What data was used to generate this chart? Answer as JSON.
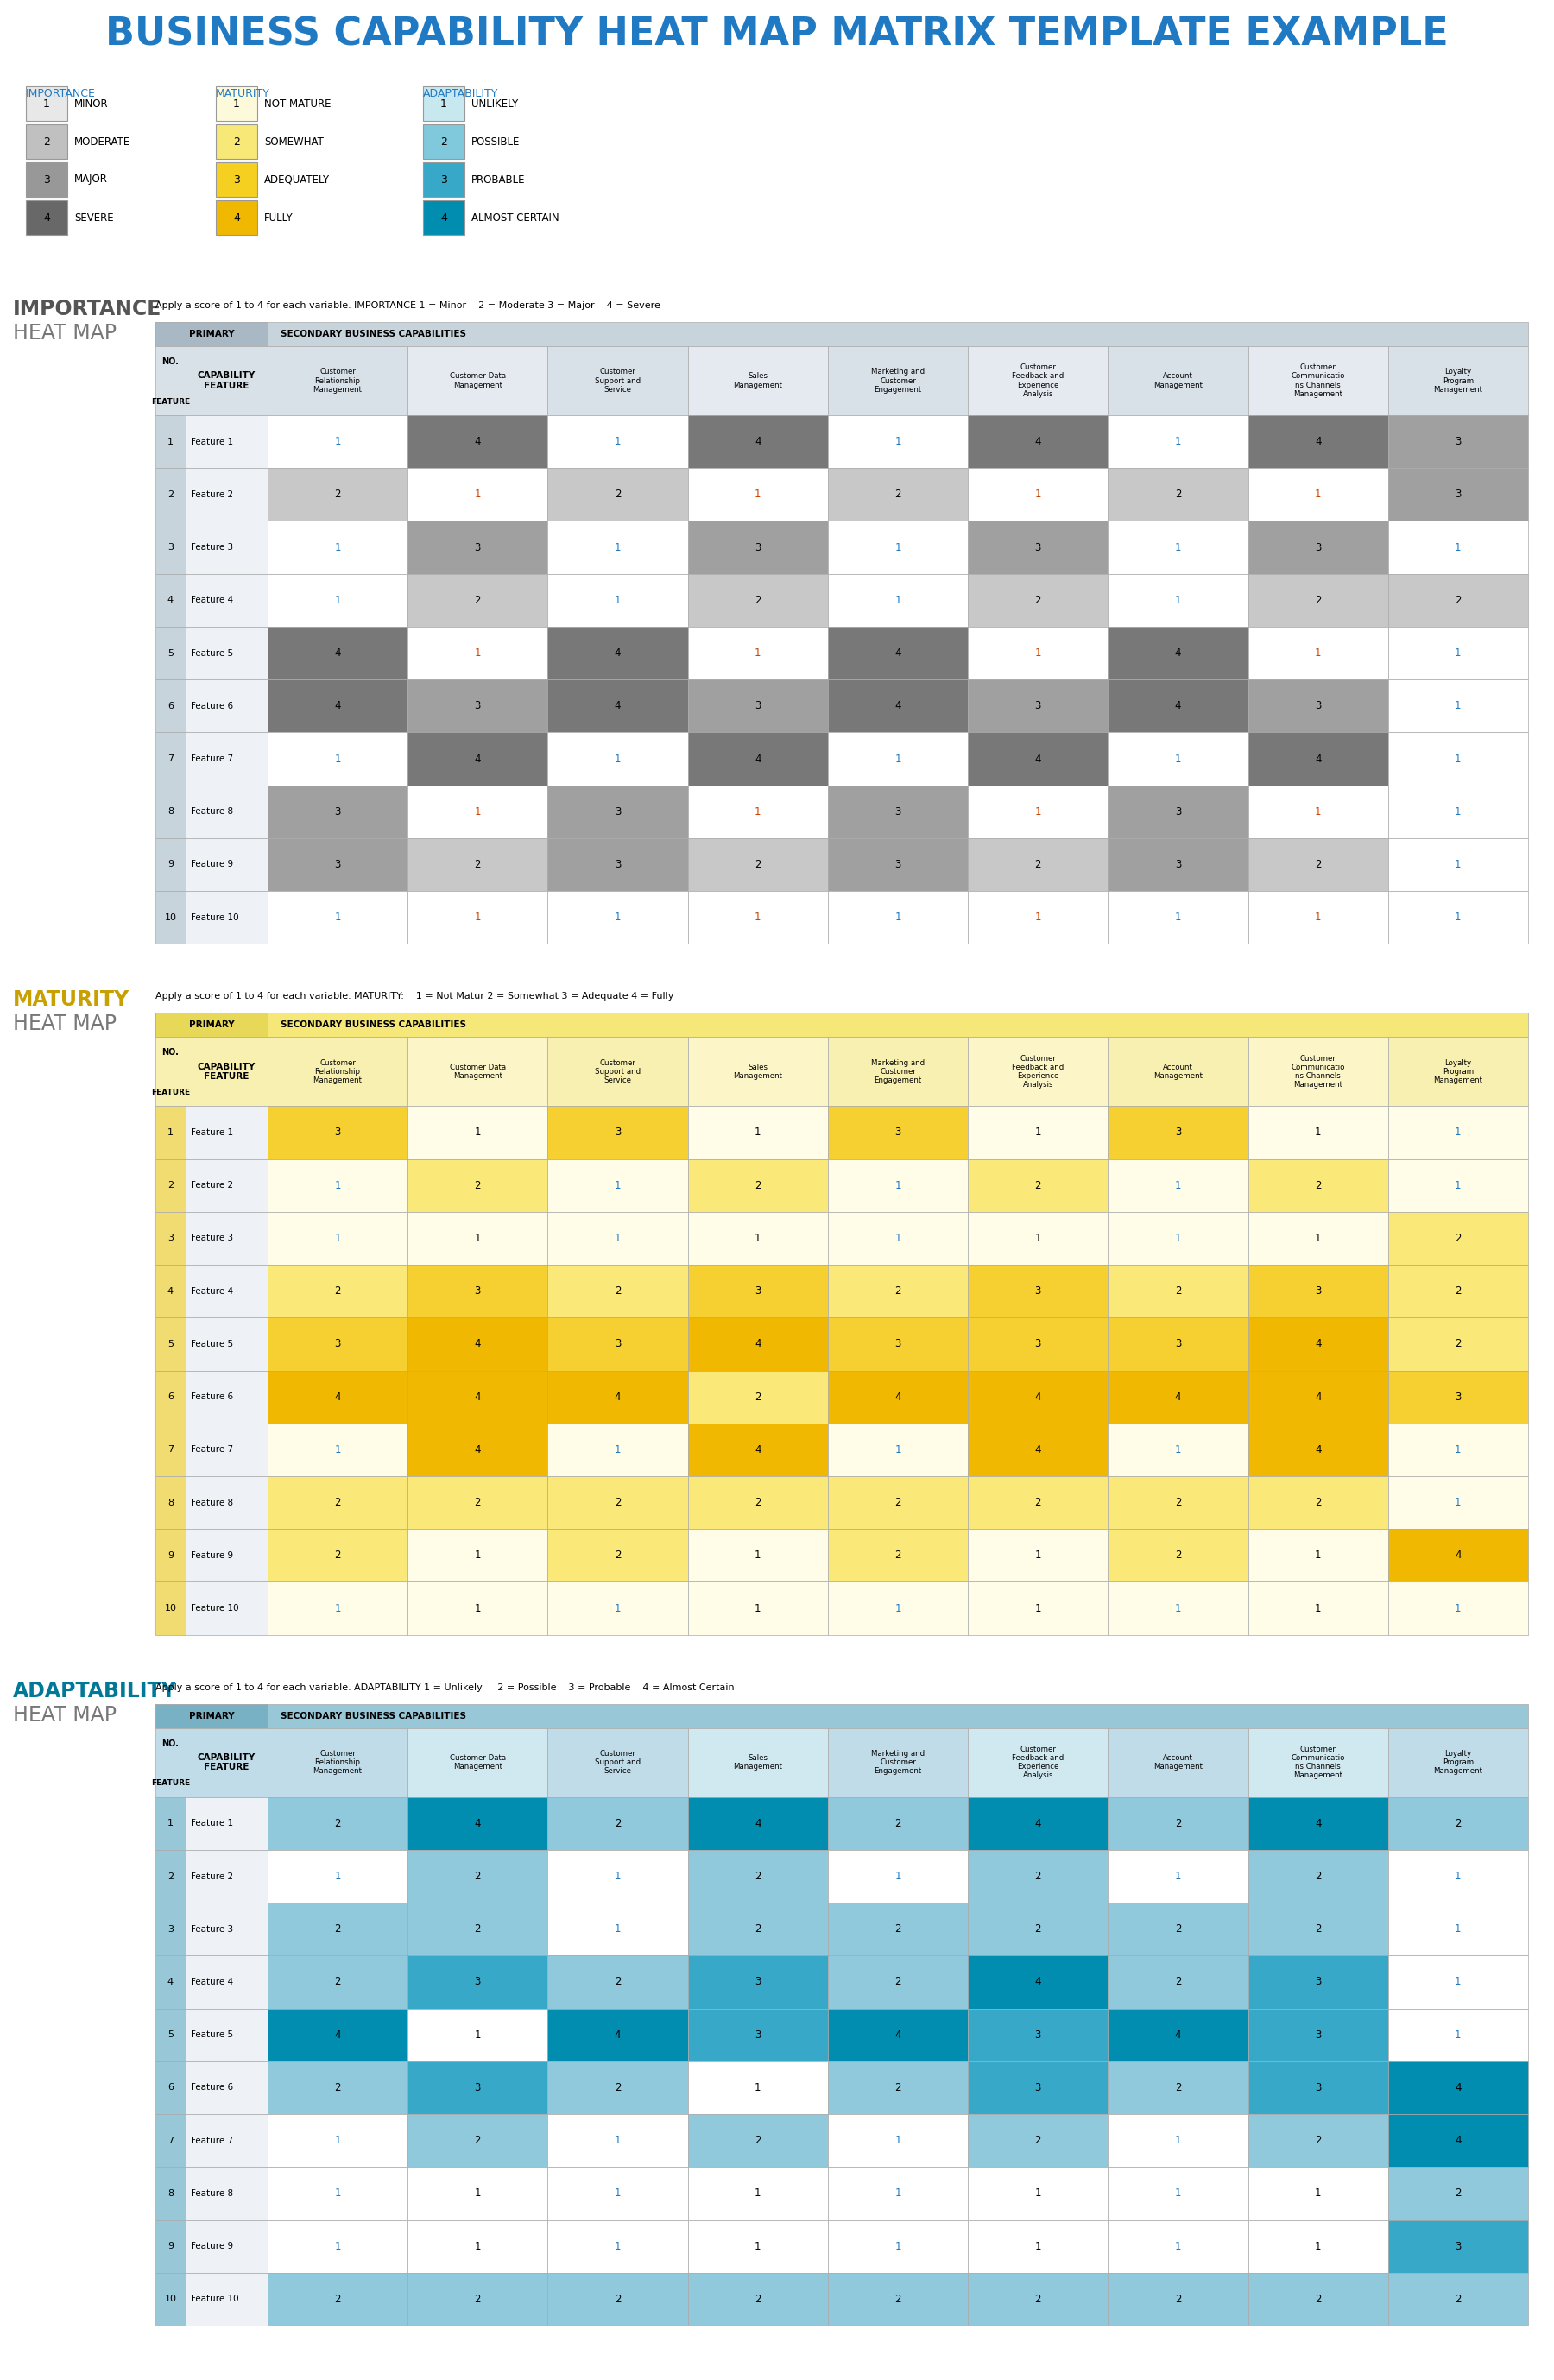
{
  "title": "BUSINESS CAPABILITY HEAT MAP MATRIX TEMPLATE EXAMPLE",
  "title_color": "#1F7AC3",
  "title_fontsize": 32,
  "legend_headers": [
    "IMPORTANCE",
    "MATURITY",
    "ADAPTABILITY"
  ],
  "legend_header_color": "#1F7AC3",
  "importance_items": [
    {
      "num": 1,
      "label": "MINOR",
      "color": "#E8E8E8"
    },
    {
      "num": 2,
      "label": "MODERATE",
      "color": "#C0C0C0"
    },
    {
      "num": 3,
      "label": "MAJOR",
      "color": "#989898"
    },
    {
      "num": 4,
      "label": "SEVERE",
      "color": "#686868"
    }
  ],
  "maturity_items": [
    {
      "num": 1,
      "label": "NOT MATURE",
      "color": "#FDFADC"
    },
    {
      "num": 2,
      "label": "SOMEWHAT",
      "color": "#F8E878"
    },
    {
      "num": 3,
      "label": "ADEQUATELY",
      "color": "#F5D020"
    },
    {
      "num": 4,
      "label": "FULLY",
      "color": "#F0B800"
    }
  ],
  "adaptability_items": [
    {
      "num": 1,
      "label": "UNLIKELY",
      "color": "#C8E8F0"
    },
    {
      "num": 2,
      "label": "POSSIBLE",
      "color": "#80C8DC"
    },
    {
      "num": 3,
      "label": "PROBABLE",
      "color": "#38A8C8"
    },
    {
      "num": 4,
      "label": "ALMOST CERTAIN",
      "color": "#008DB0"
    }
  ],
  "col_headers": [
    "Customer\nRelationship\nManagement",
    "Customer Data\nManagement",
    "Customer\nSupport and\nService",
    "Sales\nManagement",
    "Marketing and\nCustomer\nEngagement",
    "Customer\nFeedback and\nExperience\nAnalysis",
    "Account\nManagement",
    "Customer\nCommunicatio\nns Channels\nManagement",
    "Loyalty\nProgram\nManagement"
  ],
  "row_labels": [
    "Feature 1",
    "Feature 2",
    "Feature 3",
    "Feature 4",
    "Feature 5",
    "Feature 6",
    "Feature 7",
    "Feature 8",
    "Feature 9",
    "Feature 10"
  ],
  "importance_data": [
    [
      1,
      4,
      1,
      4,
      1,
      4,
      1,
      4,
      3
    ],
    [
      2,
      1,
      2,
      1,
      2,
      1,
      2,
      1,
      3
    ],
    [
      1,
      3,
      1,
      3,
      1,
      3,
      1,
      3,
      1
    ],
    [
      1,
      2,
      1,
      2,
      1,
      2,
      1,
      2,
      2
    ],
    [
      4,
      1,
      4,
      1,
      4,
      1,
      4,
      1,
      1
    ],
    [
      4,
      3,
      4,
      3,
      4,
      3,
      4,
      3,
      1
    ],
    [
      1,
      4,
      1,
      4,
      1,
      4,
      1,
      4,
      1
    ],
    [
      3,
      1,
      3,
      1,
      3,
      1,
      3,
      1,
      1
    ],
    [
      3,
      2,
      3,
      2,
      3,
      2,
      3,
      2,
      1
    ],
    [
      1,
      1,
      1,
      1,
      1,
      1,
      1,
      1,
      1
    ]
  ],
  "maturity_data": [
    [
      3,
      1,
      3,
      1,
      3,
      1,
      3,
      1,
      1
    ],
    [
      1,
      2,
      1,
      2,
      1,
      2,
      1,
      2,
      1
    ],
    [
      1,
      1,
      1,
      1,
      1,
      1,
      1,
      1,
      2
    ],
    [
      2,
      3,
      2,
      3,
      2,
      3,
      2,
      3,
      2
    ],
    [
      3,
      4,
      3,
      4,
      3,
      3,
      3,
      4,
      2
    ],
    [
      4,
      4,
      4,
      2,
      4,
      4,
      4,
      4,
      3
    ],
    [
      1,
      4,
      1,
      4,
      1,
      4,
      1,
      4,
      1
    ],
    [
      2,
      2,
      2,
      2,
      2,
      2,
      2,
      2,
      1
    ],
    [
      2,
      1,
      2,
      1,
      2,
      1,
      2,
      1,
      4
    ],
    [
      1,
      1,
      1,
      1,
      1,
      1,
      1,
      1,
      1
    ]
  ],
  "adaptability_data": [
    [
      2,
      4,
      2,
      4,
      2,
      4,
      2,
      4,
      2
    ],
    [
      1,
      2,
      1,
      2,
      1,
      2,
      1,
      2,
      1
    ],
    [
      2,
      2,
      1,
      2,
      2,
      2,
      2,
      2,
      1
    ],
    [
      2,
      3,
      2,
      3,
      2,
      4,
      2,
      3,
      1
    ],
    [
      4,
      1,
      4,
      3,
      4,
      3,
      4,
      3,
      1
    ],
    [
      2,
      3,
      2,
      1,
      2,
      3,
      2,
      3,
      4
    ],
    [
      1,
      2,
      1,
      2,
      1,
      2,
      1,
      2,
      4
    ],
    [
      1,
      1,
      1,
      1,
      1,
      1,
      1,
      1,
      2
    ],
    [
      1,
      1,
      1,
      1,
      1,
      1,
      1,
      1,
      3
    ],
    [
      2,
      2,
      2,
      2,
      2,
      2,
      2,
      2,
      2
    ]
  ],
  "importance_colors": {
    "1": "#FFFFFF",
    "2": "#C8C8C8",
    "3": "#A0A0A0",
    "4": "#787878"
  },
  "maturity_colors": {
    "1": "#FFFDE8",
    "2": "#FAE878",
    "3": "#F5D030",
    "4": "#F0B800"
  },
  "adaptability_colors": {
    "1": "#FFFFFF",
    "2": "#90C8DC",
    "3": "#38A8C8",
    "4": "#008DB0"
  },
  "primary_label": "PRIMARY",
  "secondary_label": "SECONDARY BUSINESS CAPABILITIES"
}
